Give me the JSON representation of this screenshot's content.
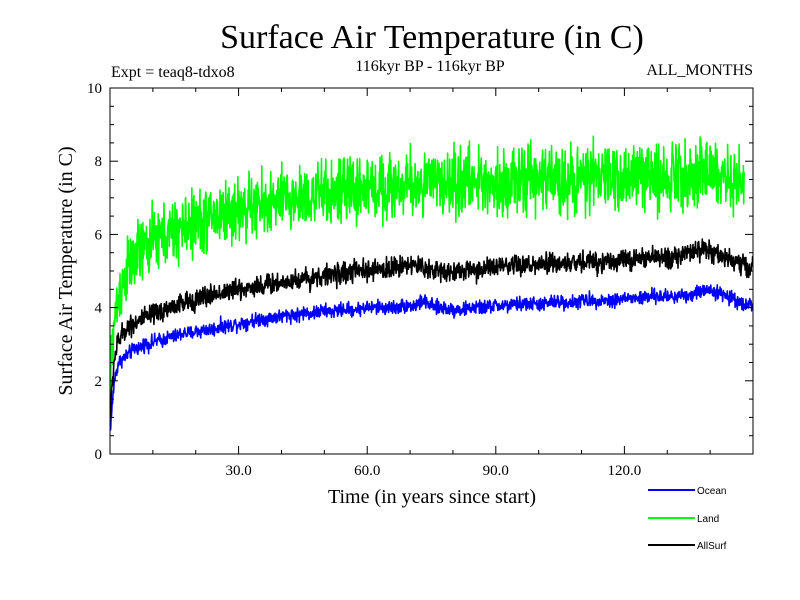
{
  "chart_data": {
    "type": "line",
    "title": "Surface Air Temperature (in C)",
    "subtitle_left": "Expt = teaq8-tdxo8",
    "subtitle_center": "116kyr BP - 116kyr BP",
    "subtitle_right": "ALL_MONTHS",
    "xlabel": "Time (in years since start)",
    "ylabel": "Surface Air Temperature (in C)",
    "xlim": [
      0,
      150
    ],
    "ylim": [
      0,
      10
    ],
    "xticks": [
      30,
      60,
      90,
      120
    ],
    "xtick_labels": [
      "30.0",
      "60.0",
      "90.0",
      "120.0"
    ],
    "yticks": [
      0,
      2,
      4,
      6,
      8,
      10
    ],
    "ytick_labels": [
      "0",
      "2",
      "4",
      "6",
      "8",
      "10"
    ],
    "grid": false,
    "legend_position": "bottom-right",
    "samples_per_year": 12,
    "series": [
      {
        "name": "Ocean",
        "color": "#0000ff",
        "annual_means": [
          0.6,
          2.0,
          2.5,
          2.6,
          2.7,
          2.8,
          2.9,
          2.9,
          3.0,
          3.0,
          3.05,
          3.1,
          3.1,
          3.15,
          3.2,
          3.2,
          3.25,
          3.3,
          3.3,
          3.3,
          3.35,
          3.35,
          3.4,
          3.4,
          3.4,
          3.45,
          3.5,
          3.5,
          3.5,
          3.55,
          3.55,
          3.6,
          3.6,
          3.65,
          3.65,
          3.7,
          3.7,
          3.7,
          3.75,
          3.75,
          3.75,
          3.8,
          3.8,
          3.8,
          3.8,
          3.85,
          3.85,
          3.85,
          3.85,
          3.9,
          3.9,
          3.9,
          3.9,
          3.9,
          3.95,
          3.95,
          3.95,
          3.95,
          3.95,
          4.0,
          4.0,
          4.0,
          4.0,
          4.0,
          4.0,
          4.0,
          4.0,
          4.0,
          4.05,
          4.05,
          4.05,
          4.05,
          4.1,
          4.2,
          4.1,
          4.05,
          4.0,
          4.0,
          4.0,
          3.95,
          3.95,
          3.95,
          3.95,
          3.95,
          4.0,
          4.0,
          4.0,
          4.0,
          4.0,
          4.05,
          4.05,
          4.05,
          4.05,
          4.05,
          4.05,
          4.1,
          4.1,
          4.1,
          4.1,
          4.1,
          4.1,
          4.1,
          4.1,
          4.15,
          4.15,
          4.15,
          4.15,
          4.15,
          4.15,
          4.15,
          4.2,
          4.2,
          4.2,
          4.2,
          4.2,
          4.2,
          4.2,
          4.2,
          4.2,
          4.25,
          4.25,
          4.25,
          4.25,
          4.25,
          4.25,
          4.3,
          4.3,
          4.3,
          4.3,
          4.3,
          4.3,
          4.3,
          4.3,
          4.35,
          4.35,
          4.35,
          4.35,
          4.4,
          4.45,
          4.5,
          4.5,
          4.45,
          4.4,
          4.35,
          4.3,
          4.25,
          4.2,
          4.15,
          4.1,
          4.1
        ],
        "noise": 0.12
      },
      {
        "name": "Land",
        "color": "#00ff00",
        "annual_means": [
          2.0,
          3.6,
          4.3,
          4.7,
          5.0,
          5.2,
          5.4,
          5.5,
          5.6,
          5.7,
          5.8,
          5.85,
          5.9,
          5.95,
          6.0,
          6.05,
          6.1,
          6.15,
          6.2,
          6.25,
          6.3,
          6.35,
          6.4,
          6.45,
          6.5,
          6.5,
          6.55,
          6.6,
          6.6,
          6.65,
          6.65,
          6.7,
          6.7,
          6.75,
          6.75,
          6.8,
          6.8,
          6.85,
          6.85,
          6.9,
          6.9,
          6.95,
          6.95,
          7.0,
          7.0,
          7.0,
          7.05,
          7.05,
          7.05,
          7.1,
          7.1,
          7.1,
          7.15,
          7.15,
          7.15,
          7.2,
          7.2,
          7.2,
          7.2,
          7.25,
          7.25,
          7.25,
          7.25,
          7.3,
          7.3,
          7.3,
          7.3,
          7.3,
          7.35,
          7.35,
          7.35,
          7.35,
          7.35,
          7.4,
          7.4,
          7.4,
          7.4,
          7.4,
          7.4,
          7.4,
          7.4,
          7.4,
          7.45,
          7.45,
          7.45,
          7.45,
          7.45,
          7.45,
          7.45,
          7.45,
          7.45,
          7.45,
          7.45,
          7.45,
          7.45,
          7.45,
          7.45,
          7.45,
          7.5,
          7.5,
          7.5,
          7.5,
          7.5,
          7.5,
          7.5,
          7.5,
          7.5,
          7.5,
          7.5,
          7.5,
          7.5,
          7.5,
          7.5,
          7.55,
          7.55,
          7.55,
          7.55,
          7.55,
          7.55,
          7.55,
          7.55,
          7.55,
          7.55,
          7.6,
          7.6,
          7.6,
          7.6,
          7.6,
          7.6,
          7.6,
          7.6,
          7.65,
          7.65,
          7.65,
          7.65,
          7.7,
          7.7,
          7.7,
          7.7,
          7.7,
          7.7,
          7.65,
          7.6,
          7.55,
          7.5,
          7.45,
          7.4,
          7.35
        ],
        "noise": 0.55
      },
      {
        "name": "AllSurf",
        "color": "#000000",
        "annual_means": [
          1.0,
          2.6,
          3.1,
          3.3,
          3.45,
          3.55,
          3.6,
          3.65,
          3.7,
          3.75,
          3.8,
          3.85,
          3.9,
          3.95,
          4.0,
          4.05,
          4.1,
          4.1,
          4.15,
          4.2,
          4.2,
          4.25,
          4.3,
          4.3,
          4.35,
          4.4,
          4.4,
          4.45,
          4.45,
          4.5,
          4.5,
          4.5,
          4.55,
          4.55,
          4.6,
          4.6,
          4.6,
          4.65,
          4.65,
          4.65,
          4.7,
          4.7,
          4.75,
          4.75,
          4.75,
          4.8,
          4.8,
          4.8,
          4.85,
          4.85,
          4.85,
          4.9,
          4.9,
          4.9,
          4.95,
          4.95,
          4.95,
          5.0,
          5.0,
          5.0,
          5.0,
          5.0,
          5.0,
          5.05,
          5.05,
          5.05,
          5.1,
          5.1,
          5.15,
          5.2,
          5.2,
          5.15,
          5.1,
          5.1,
          5.05,
          5.05,
          5.0,
          5.0,
          5.0,
          5.0,
          5.0,
          5.0,
          5.0,
          5.0,
          5.0,
          5.05,
          5.05,
          5.05,
          5.05,
          5.1,
          5.1,
          5.1,
          5.1,
          5.1,
          5.1,
          5.15,
          5.15,
          5.15,
          5.15,
          5.15,
          5.15,
          5.15,
          5.2,
          5.2,
          5.2,
          5.2,
          5.2,
          5.2,
          5.2,
          5.25,
          5.25,
          5.25,
          5.25,
          5.25,
          5.25,
          5.25,
          5.3,
          5.3,
          5.3,
          5.3,
          5.3,
          5.3,
          5.3,
          5.3,
          5.35,
          5.35,
          5.35,
          5.35,
          5.35,
          5.35,
          5.4,
          5.4,
          5.4,
          5.4,
          5.45,
          5.45,
          5.5,
          5.55,
          5.6,
          5.6,
          5.55,
          5.5,
          5.45,
          5.4,
          5.35,
          5.3,
          5.25,
          5.2,
          5.15,
          5.1
        ],
        "noise": 0.18
      }
    ]
  }
}
